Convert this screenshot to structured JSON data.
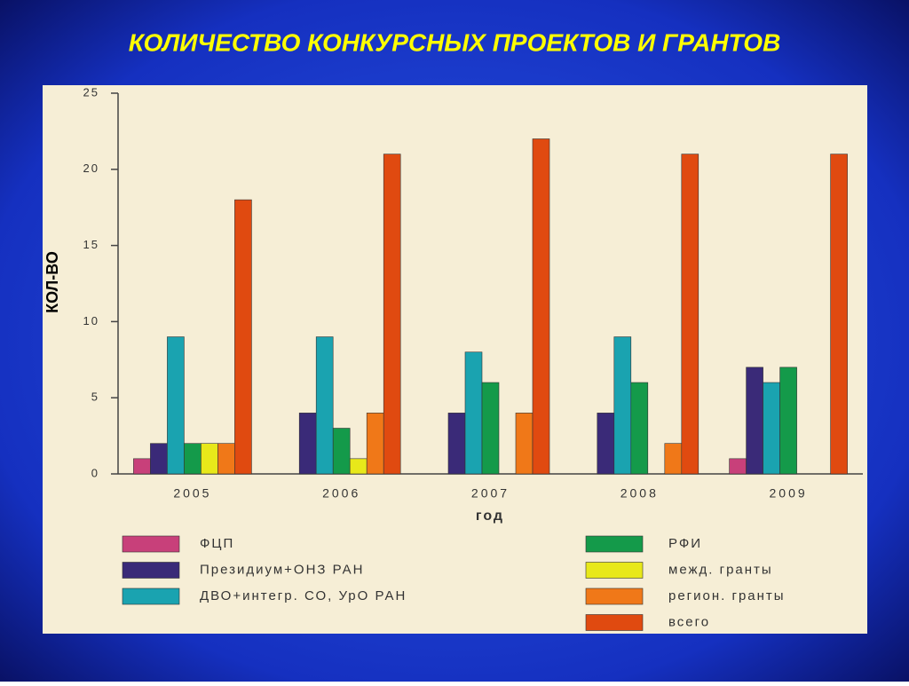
{
  "chart_data": {
    "type": "bar",
    "title": "КОЛИЧЕСТВО КОНКУРСНЫХ ПРОЕКТОВ И ГРАНТОВ",
    "x_label": "год",
    "y_label": "КОЛ-ВО",
    "categories": [
      "2005",
      "2006",
      "2007",
      "2008",
      "2009"
    ],
    "series": [
      {
        "name": "ФЦП",
        "color": "#c8407a",
        "values": [
          1,
          0,
          0,
          0,
          1
        ]
      },
      {
        "name": "Президиум+ОНЗ РАН",
        "color": "#3a2a78",
        "values": [
          2,
          4,
          4,
          4,
          7
        ]
      },
      {
        "name": "ДВО+интегр. СО, УрО РАН",
        "color": "#1aa3b0",
        "values": [
          9,
          9,
          8,
          9,
          6
        ]
      },
      {
        "name": "РФИ",
        "color": "#149a4a",
        "values": [
          2,
          3,
          6,
          6,
          7
        ]
      },
      {
        "name": "межд. гранты",
        "color": "#e8e81a",
        "values": [
          2,
          1,
          0,
          0,
          0
        ]
      },
      {
        "name": "регион. гранты",
        "color": "#f07818",
        "values": [
          2,
          4,
          4,
          2,
          0
        ]
      },
      {
        "name": "всего",
        "color": "#e04a10",
        "values": [
          18,
          21,
          22,
          21,
          21
        ]
      }
    ],
    "ylim": [
      0,
      25
    ],
    "yticks": [
      0,
      5,
      10,
      15,
      20,
      25
    ],
    "grid": false
  }
}
